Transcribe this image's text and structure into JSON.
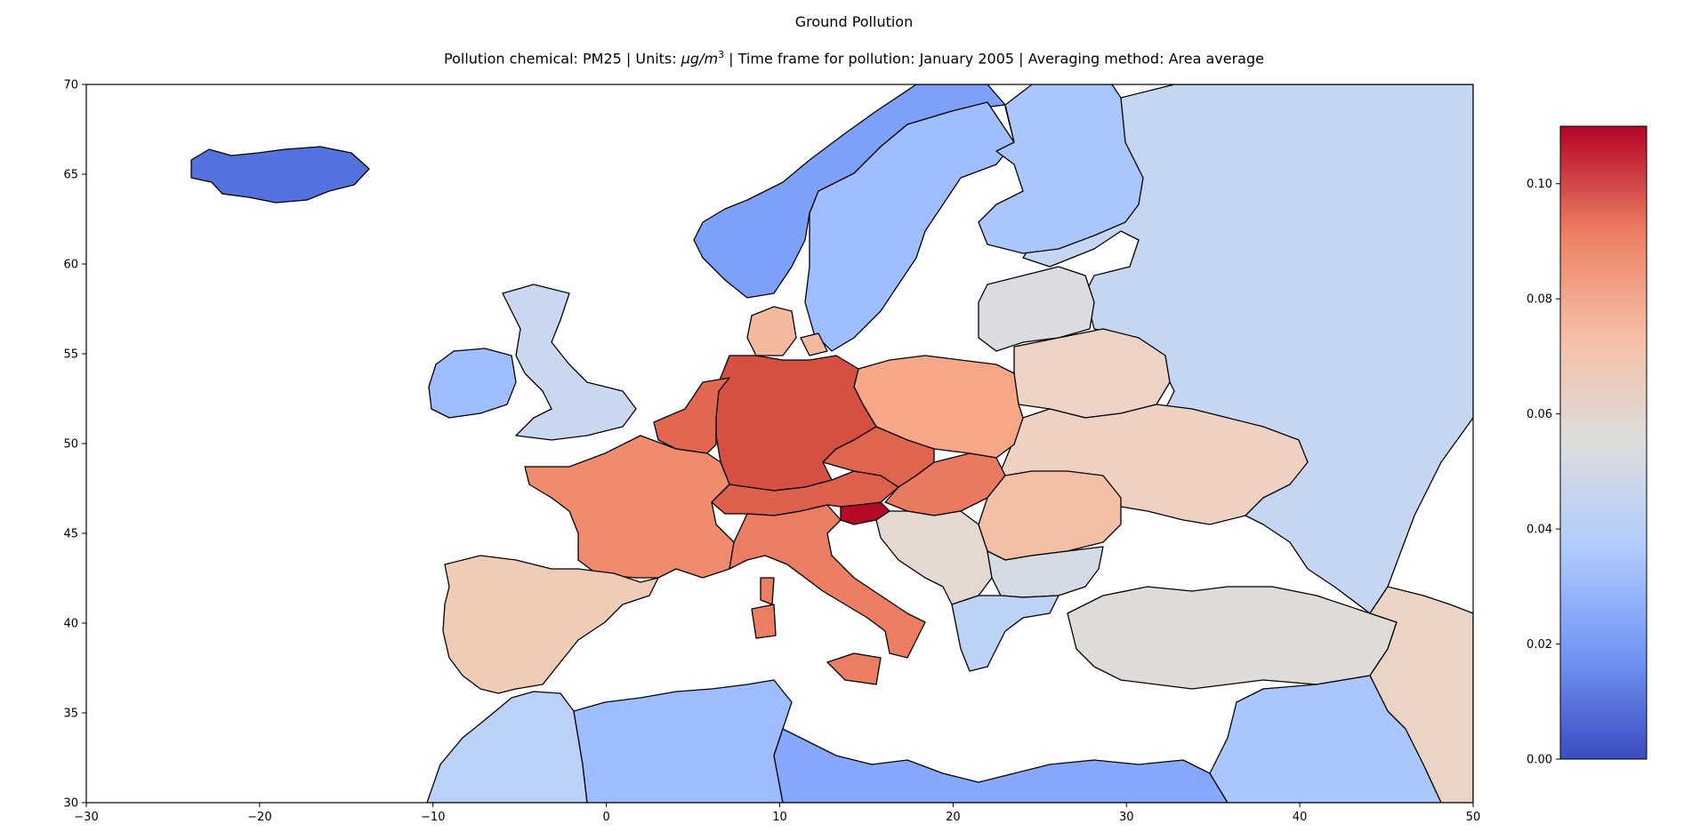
{
  "title": "Ground Pollution",
  "subtitle_prefix": "Pollution chemical: PM25 | Units: ",
  "subtitle_unit": "μg/m",
  "subtitle_unit_exp": "3",
  "subtitle_suffix": " | Time frame for pollution: January 2005 | Averaging method: Area average",
  "axes": {
    "xlim": [
      -30,
      50
    ],
    "ylim": [
      30,
      70
    ],
    "xticks": [
      "−30",
      "−20",
      "−10",
      "0",
      "10",
      "20",
      "30",
      "40",
      "50"
    ],
    "yticks": [
      "30",
      "35",
      "40",
      "45",
      "50",
      "55",
      "60",
      "65",
      "70"
    ]
  },
  "colorbar": {
    "min": 0.0,
    "max": 0.11,
    "ticks": [
      "0.00",
      "0.02",
      "0.04",
      "0.06",
      "0.08",
      "0.10"
    ],
    "colormap": [
      "#3b4cc0",
      "#7396f5",
      "#b0cbfc",
      "#dcdddd",
      "#f6bfa6",
      "#ec7f63",
      "#b40426"
    ]
  },
  "regions": [
    {
      "id": "iceland",
      "color": "#5472de"
    },
    {
      "id": "norway",
      "color": "#7da0f9"
    },
    {
      "id": "sweden",
      "color": "#9ebeff"
    },
    {
      "id": "finland",
      "color": "#aac7fd"
    },
    {
      "id": "russia",
      "color": "#c5d6f2"
    },
    {
      "id": "ireland",
      "color": "#9ebeff"
    },
    {
      "id": "uk",
      "color": "#c9d7f0"
    },
    {
      "id": "denmark",
      "color": "#f5b9a0"
    },
    {
      "id": "germany",
      "color": "#d55042"
    },
    {
      "id": "benelux",
      "color": "#e16751"
    },
    {
      "id": "france",
      "color": "#f08b6e"
    },
    {
      "id": "spain-portugal",
      "color": "#f0cbb6"
    },
    {
      "id": "switzerland-austria",
      "color": "#de614d"
    },
    {
      "id": "czechia",
      "color": "#e0654f"
    },
    {
      "id": "poland",
      "color": "#f5a788"
    },
    {
      "id": "hungary",
      "color": "#e97a5f"
    },
    {
      "id": "slovenia",
      "color": "#b50927"
    },
    {
      "id": "italy",
      "color": "#eb7d62"
    },
    {
      "id": "balkans",
      "color": "#e5d8d1"
    },
    {
      "id": "romania",
      "color": "#f4c0a5"
    },
    {
      "id": "belarus",
      "color": "#ecd3c5"
    },
    {
      "id": "ukraine",
      "color": "#eed1c2"
    },
    {
      "id": "baltics",
      "color": "#dadce0"
    },
    {
      "id": "bulgaria",
      "color": "#d3dbe7"
    },
    {
      "id": "greece",
      "color": "#bcd2f7"
    },
    {
      "id": "turkey",
      "color": "#dfdbd9"
    },
    {
      "id": "caucasus",
      "color": "#ebd3c6"
    },
    {
      "id": "north-africa-west",
      "color": "#bbd1f8"
    },
    {
      "id": "north-africa-algeria",
      "color": "#9dbdff"
    },
    {
      "id": "north-africa-libya",
      "color": "#85a8fc"
    },
    {
      "id": "middle-east",
      "color": "#a9c6fd"
    }
  ]
}
